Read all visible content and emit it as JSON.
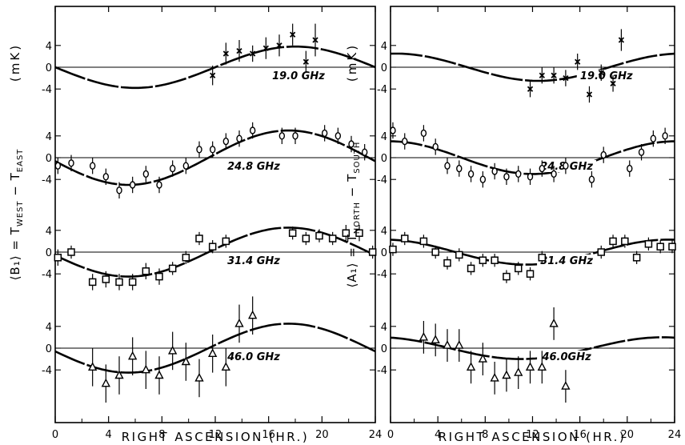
{
  "figure": {
    "y_unit": "(mK)",
    "left_ylabel": {
      "main": "⟨B₁⟩ = T",
      "sub1": "WEST",
      "mid": " − T",
      "sub2": "EAST"
    },
    "right_ylabel": {
      "main": "⟨A₁⟩ = T",
      "sub1": "NORTH",
      "mid": " − T",
      "sub2": "SOUTH"
    }
  },
  "chart_data": [
    {
      "type": "scatter",
      "title": "",
      "xlabel": "RIGHT ASCENSION (HR.)",
      "ylabel": "⟨B₁⟩ = T_WEST − T_EAST (mK)",
      "xlim": [
        0,
        24
      ],
      "x_ticks": [
        "0",
        "4",
        "8",
        "12",
        "16",
        "20",
        "24"
      ],
      "y_ticks": [
        "4",
        "0",
        "-4"
      ],
      "grid": false,
      "subplots": [
        {
          "frequency": "19.0 GHz",
          "marker": "x",
          "x": [
            11.8,
            12.8,
            13.8,
            14.8,
            15.8,
            16.8,
            17.8,
            18.8,
            19.5
          ],
          "y": [
            -1.5,
            2.5,
            3.0,
            2.5,
            3.5,
            4.0,
            6.0,
            1.0,
            5.0
          ],
          "err": [
            1.8,
            2.0,
            2.0,
            1.5,
            2.0,
            2.0,
            2.0,
            2.0,
            3.0
          ],
          "fit": {
            "amplitude": 3.8,
            "peak_hr": 18.0
          }
        },
        {
          "frequency": "24.8 GHz",
          "marker": "o",
          "x": [
            0.2,
            1.2,
            2.8,
            3.8,
            4.8,
            5.8,
            6.8,
            7.8,
            8.8,
            9.8,
            10.8,
            11.8,
            12.8,
            13.8,
            14.8,
            17.0,
            18.0,
            20.2,
            21.2,
            22.2,
            23.2
          ],
          "y": [
            -1.5,
            -1.0,
            -1.5,
            -3.5,
            -6.0,
            -5.0,
            -3.0,
            -5.0,
            -2.0,
            -1.5,
            1.5,
            1.5,
            3.0,
            3.5,
            5.0,
            4.0,
            4.0,
            4.5,
            4.0,
            2.5,
            1.0
          ],
          "err": [
            1.5,
            1.5,
            1.5,
            1.5,
            1.5,
            1.5,
            1.5,
            1.5,
            1.5,
            1.5,
            1.5,
            1.5,
            1.5,
            1.5,
            1.5,
            1.5,
            1.5,
            1.5,
            1.5,
            1.5,
            1.5
          ],
          "fit": {
            "amplitude": 5.0,
            "peak_hr": 17.5
          }
        },
        {
          "frequency": "31.4 GHz",
          "marker": "square",
          "x": [
            0.2,
            1.2,
            2.8,
            3.8,
            4.8,
            5.8,
            6.8,
            7.8,
            8.8,
            9.8,
            10.8,
            11.8,
            12.8,
            17.8,
            18.8,
            19.8,
            20.8,
            21.8,
            22.8,
            23.8
          ],
          "y": [
            -1.0,
            0.0,
            -5.5,
            -5.0,
            -5.5,
            -5.5,
            -3.5,
            -4.5,
            -3.0,
            -1.0,
            2.5,
            1.0,
            2.0,
            3.5,
            2.5,
            3.0,
            2.5,
            3.5,
            3.5,
            0.0
          ],
          "err": [
            1.5,
            1.2,
            1.5,
            1.5,
            1.5,
            1.5,
            1.5,
            1.5,
            1.2,
            1.2,
            1.2,
            1.2,
            1.2,
            1.2,
            1.2,
            1.2,
            1.2,
            1.5,
            1.5,
            1.2
          ],
          "fit": {
            "amplitude": 4.5,
            "peak_hr": 17.5
          }
        },
        {
          "frequency": "46.0 GHz",
          "marker": "triangle",
          "x": [
            2.8,
            3.8,
            4.8,
            5.8,
            6.8,
            7.8,
            8.8,
            9.8,
            10.8,
            11.8,
            12.8,
            13.8,
            14.8
          ],
          "y": [
            -3.5,
            -6.5,
            -5.0,
            -1.5,
            -4.0,
            -5.0,
            -0.5,
            -2.5,
            -5.5,
            -1.0,
            -3.5,
            4.5,
            6.0
          ],
          "err": [
            3.5,
            3.5,
            3.5,
            3.5,
            3.5,
            3.5,
            3.5,
            3.5,
            3.5,
            3.5,
            3.5,
            3.5,
            3.5
          ],
          "fit": {
            "amplitude": 4.5,
            "peak_hr": 17.5
          }
        }
      ]
    },
    {
      "type": "scatter",
      "title": "",
      "xlabel": "RIGHT ASCENSION (HR.)",
      "ylabel": "⟨A₁⟩ = T_NORTH − T_SOUTH (mK)",
      "xlim": [
        0,
        24
      ],
      "x_ticks": [
        "0",
        "4",
        "8",
        "12",
        "16",
        "20",
        "24"
      ],
      "y_ticks": [
        "4",
        "0",
        "-4"
      ],
      "grid": false,
      "subplots": [
        {
          "frequency": "19.0 GHz",
          "marker": "x",
          "x": [
            11.8,
            12.8,
            13.8,
            14.8,
            15.8,
            16.8,
            17.8,
            18.8,
            19.5
          ],
          "y": [
            -4.0,
            -1.5,
            -1.5,
            -2.0,
            1.0,
            -5.0,
            -1.0,
            -3.0,
            5.0
          ],
          "err": [
            1.5,
            1.5,
            1.5,
            1.5,
            1.5,
            1.5,
            1.5,
            1.5,
            2.0
          ],
          "fit": {
            "amplitude": 2.5,
            "peak_hr": 0.5
          }
        },
        {
          "frequency": "24.8 GHz",
          "marker": "o",
          "x": [
            0.2,
            1.2,
            2.8,
            3.8,
            4.8,
            5.8,
            6.8,
            7.8,
            8.8,
            9.8,
            10.8,
            11.8,
            12.8,
            13.8,
            14.8,
            17.0,
            18.0,
            20.2,
            21.2,
            22.2,
            23.2
          ],
          "y": [
            5.0,
            3.0,
            4.5,
            2.0,
            -1.5,
            -2.0,
            -3.0,
            -4.0,
            -2.5,
            -3.5,
            -3.0,
            -3.5,
            -2.0,
            -3.0,
            -1.5,
            -4.0,
            0.5,
            -2.0,
            1.0,
            3.5,
            4.0
          ],
          "err": [
            1.5,
            1.5,
            1.5,
            1.5,
            1.5,
            1.5,
            1.5,
            1.5,
            1.5,
            1.5,
            1.5,
            1.5,
            1.5,
            1.5,
            1.5,
            1.5,
            1.5,
            1.5,
            1.5,
            1.5,
            1.5
          ],
          "fit": {
            "amplitude": 3.0,
            "peak_hr": 24.0
          }
        },
        {
          "frequency": "31.4 GHz",
          "marker": "square",
          "x": [
            0.2,
            1.2,
            2.8,
            3.8,
            4.8,
            5.8,
            6.8,
            7.8,
            8.8,
            9.8,
            10.8,
            11.8,
            12.8,
            17.8,
            18.8,
            19.8,
            20.8,
            21.8,
            22.8,
            23.8
          ],
          "y": [
            0.5,
            2.5,
            2.0,
            0.0,
            -2.0,
            -0.5,
            -3.0,
            -1.5,
            -1.5,
            -4.5,
            -3.0,
            -4.0,
            -1.0,
            0.0,
            2.0,
            2.0,
            -1.0,
            1.5,
            1.0,
            1.0
          ],
          "err": [
            1.2,
            1.2,
            1.2,
            1.2,
            1.2,
            1.2,
            1.2,
            1.2,
            1.2,
            1.2,
            1.2,
            1.2,
            1.2,
            1.2,
            1.2,
            1.2,
            1.2,
            1.2,
            1.2,
            1.2
          ],
          "fit": {
            "amplitude": 2.3,
            "peak_hr": 23.5
          }
        },
        {
          "frequency": "46.0GHz",
          "marker": "triangle",
          "x": [
            2.8,
            3.8,
            4.8,
            5.8,
            6.8,
            7.8,
            8.8,
            9.8,
            10.8,
            11.8,
            12.8,
            13.8,
            14.8
          ],
          "y": [
            2.0,
            1.5,
            0.5,
            0.5,
            -3.5,
            -2.0,
            -5.5,
            -5.0,
            -4.5,
            -3.5,
            -3.5,
            4.5,
            -7.0
          ],
          "err": [
            3.0,
            3.0,
            3.0,
            3.0,
            3.0,
            3.0,
            3.0,
            3.0,
            3.0,
            3.0,
            3.0,
            3.0,
            3.0
          ],
          "fit": {
            "amplitude": 2.0,
            "peak_hr": 23.0
          }
        }
      ]
    }
  ]
}
